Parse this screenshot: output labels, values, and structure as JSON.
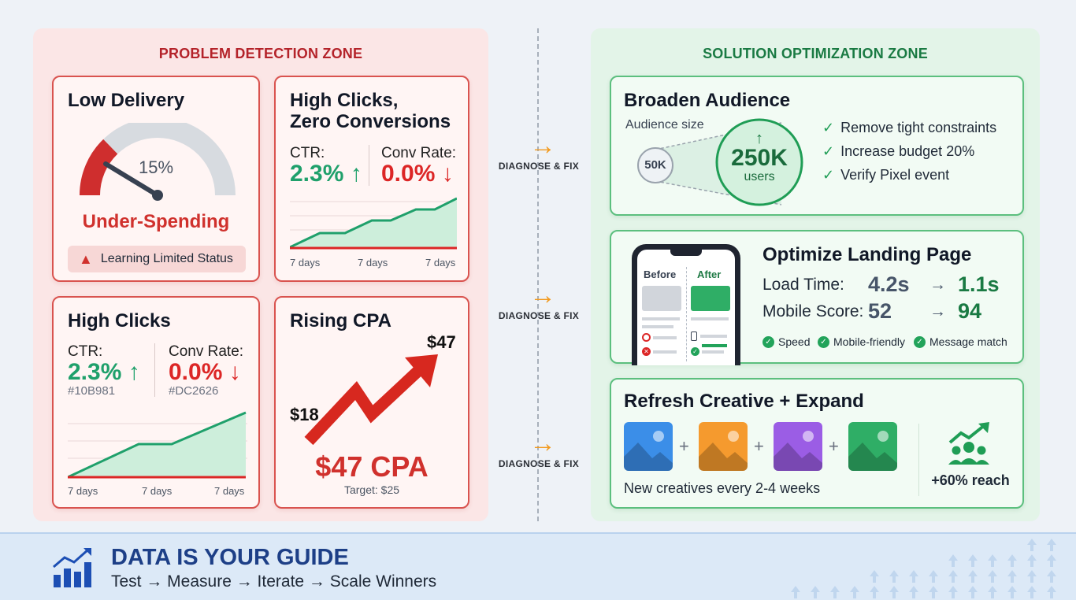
{
  "problem_zone": {
    "title": "PROBLEM DETECTION ZONE",
    "low_delivery": {
      "title": "Low Delivery",
      "gauge_percent_label": "15%",
      "gauge_fraction": 0.15,
      "status": "Under-Spending",
      "warning": "Learning Limited Status"
    },
    "high_clicks_zero_conv": {
      "title_line1": "High Clicks,",
      "title_line2": "Zero Conversions",
      "ctr_label": "CTR:",
      "ctr_value": "2.3% ↑",
      "conv_label": "Conv Rate:",
      "conv_value": "0.0% ↓",
      "x_labels": [
        "7 days",
        "7 days",
        "7 days"
      ]
    },
    "high_clicks": {
      "title": "High Clicks",
      "ctr_label": "CTR:",
      "ctr_value": "2.3% ↑",
      "ctr_color_label": "#10B981",
      "conv_label": "Conv Rate:",
      "conv_value": "0.0% ↓",
      "conv_color_label": "#DC2626",
      "x_labels": [
        "7 days",
        "7 days",
        "7 days"
      ]
    },
    "rising_cpa": {
      "title": "Rising CPA",
      "start_label": "$18",
      "end_label": "$47",
      "cpa": "$47 CPA",
      "target": "Target: $25"
    }
  },
  "fix_label": "DIAGNOSE & FIX",
  "solution_zone": {
    "title": "SOLUTION OPTIMIZATION ZONE",
    "broaden": {
      "title": "Broaden Audience",
      "audience_label": "Audience size",
      "small": "50K",
      "large": "250K",
      "large_unit": "users",
      "checks": [
        "Remove tight constraints",
        "Increase budget 20%",
        "Verify Pixel event"
      ]
    },
    "landing": {
      "title": "Optimize Landing Page",
      "before": "Before",
      "after": "After",
      "load_label": "Load Time:",
      "load_before": "4.2s",
      "load_after": "1.1s",
      "mobile_label": "Mobile Score:",
      "mobile_before": "52",
      "mobile_after": "94",
      "pills": [
        "Speed",
        "Mobile-friendly",
        "Message match"
      ]
    },
    "creative": {
      "title": "Refresh Creative + Expand",
      "note": "New creatives every 2-4 weeks",
      "reach": "+60% reach",
      "tile_colors": [
        "#3b8ee8",
        "#f59a2e",
        "#9b5de5",
        "#2fae66"
      ]
    }
  },
  "banner": {
    "title": "DATA IS YOUR GUIDE",
    "subtitle": "Test → Measure → Iterate → Scale Winners"
  },
  "colors": {
    "problem_accent": "#d9534f",
    "solution_accent": "#5cbf7e",
    "positive": "#1fa06b",
    "negative": "#dc2626",
    "arrow": "#f29a1e"
  }
}
